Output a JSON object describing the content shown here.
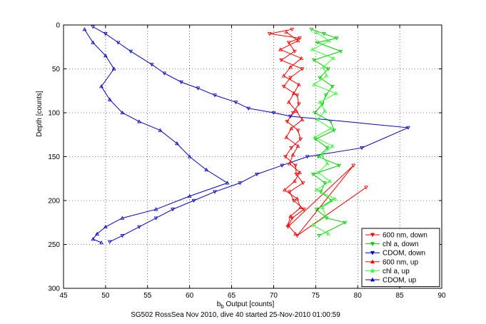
{
  "chart_data": {
    "type": "scatter",
    "title": "",
    "caption": "SG502 RossSea Nov 2010, dive 40 started 25-Nov-2010 01:00:59",
    "xlabel_main": "b",
    "xlabel_sub": "b",
    "xlabel_rest": " Output [counts]",
    "ylabel": "Depth [counts]",
    "xlim": [
      45,
      90
    ],
    "ylim": [
      0,
      300
    ],
    "y_reversed": true,
    "xticks": [
      45,
      50,
      55,
      60,
      65,
      70,
      75,
      80,
      85,
      90
    ],
    "yticks": [
      0,
      50,
      100,
      150,
      200,
      250,
      300
    ],
    "grid": true,
    "legend_position": "bottom-right",
    "series": [
      {
        "name": "600 nm, down",
        "color": "#ff0000",
        "marker": "triangle-down",
        "x": [
          72.2,
          69.5,
          73.1,
          71.8,
          72.5,
          70.9,
          73.4,
          72.0,
          71.2,
          72.8,
          73.0,
          72.3,
          71.6,
          72.9,
          73.2,
          72.1,
          71.4,
          72.6,
          72.7,
          73.5,
          71.9,
          72.4,
          73.6,
          72.2,
          71.7,
          79.5,
          72.8,
          81.0
        ],
        "y": [
          5,
          10,
          15,
          20,
          30,
          40,
          50,
          60,
          70,
          80,
          90,
          100,
          110,
          120,
          130,
          140,
          150,
          160,
          170,
          180,
          190,
          200,
          210,
          220,
          230,
          160,
          240,
          185
        ]
      },
      {
        "name": "chl a, down",
        "color": "#00cc00",
        "marker": "triangle-down",
        "x": [
          74.5,
          76.0,
          77.5,
          75.2,
          78.0,
          74.8,
          76.5,
          75.5,
          77.0,
          76.2,
          75.8,
          74.9,
          76.8,
          77.2,
          75.0,
          76.4,
          75.3,
          77.8,
          74.7,
          76.1,
          75.6,
          76.9,
          75.1,
          76.3,
          78.5,
          75.4
        ],
        "y": [
          5,
          10,
          15,
          20,
          30,
          40,
          50,
          60,
          70,
          80,
          90,
          100,
          110,
          120,
          130,
          140,
          150,
          160,
          170,
          180,
          190,
          200,
          210,
          220,
          225,
          240
        ]
      },
      {
        "name": "CDOM, down",
        "color": "#0000cc",
        "marker": "triangle-down",
        "x": [
          48.5,
          50.0,
          51.5,
          53.0,
          55.5,
          57.0,
          59.0,
          61.0,
          63.0,
          65.5,
          67.0,
          70.0,
          72.0,
          86.0,
          80.5,
          74.0,
          71.0,
          68.0,
          66.0,
          63.0,
          60.5,
          58.0,
          56.0,
          54.0,
          52.0,
          50.5
        ],
        "y": [
          2,
          10,
          20,
          30,
          45,
          55,
          65,
          72,
          80,
          88,
          95,
          100,
          104,
          117,
          140,
          150,
          160,
          170,
          180,
          190,
          200,
          210,
          220,
          230,
          240,
          247
        ]
      },
      {
        "name": "600 nm, up",
        "color": "#ff0000",
        "marker": "triangle-up",
        "x": [
          71.5,
          72.9,
          70.8,
          73.3,
          72.0,
          71.2,
          73.0,
          72.4,
          71.8,
          72.7,
          73.4,
          72.1,
          71.5,
          72.9,
          72.3,
          71.9,
          73.1,
          72.5,
          71.3,
          72.8,
          73.2,
          72.0,
          71.7,
          72.6
        ],
        "y": [
          8,
          18,
          28,
          38,
          48,
          58,
          68,
          78,
          88,
          98,
          108,
          118,
          128,
          138,
          148,
          158,
          168,
          178,
          188,
          198,
          208,
          218,
          228,
          238
        ]
      },
      {
        "name": "chl a, up",
        "color": "#33ff33",
        "marker": "triangle-up",
        "x": [
          75.0,
          76.6,
          74.6,
          77.1,
          75.9,
          76.3,
          74.8,
          77.4,
          75.5,
          76.1,
          75.2,
          76.8,
          74.9,
          77.0,
          75.7,
          76.4,
          75.3,
          76.7,
          75.1,
          77.3,
          75.8,
          76.2,
          74.7,
          76.5
        ],
        "y": [
          8,
          18,
          28,
          38,
          48,
          58,
          68,
          78,
          88,
          98,
          108,
          118,
          128,
          138,
          148,
          158,
          168,
          178,
          188,
          198,
          208,
          218,
          228,
          238
        ]
      },
      {
        "name": "CDOM, up",
        "color": "#0000cc",
        "marker": "triangle-up",
        "x": [
          47.5,
          48.5,
          50.0,
          51.0,
          49.5,
          50.5,
          52.0,
          54.0,
          56.5,
          58.5,
          60.0,
          62.0,
          64.5,
          60.0,
          56.0,
          52.0,
          50.0,
          49.0,
          48.5,
          49.5
        ],
        "y": [
          5,
          20,
          35,
          50,
          70,
          85,
          100,
          110,
          120,
          135,
          150,
          165,
          180,
          195,
          210,
          220,
          230,
          238,
          244,
          248
        ]
      }
    ]
  }
}
